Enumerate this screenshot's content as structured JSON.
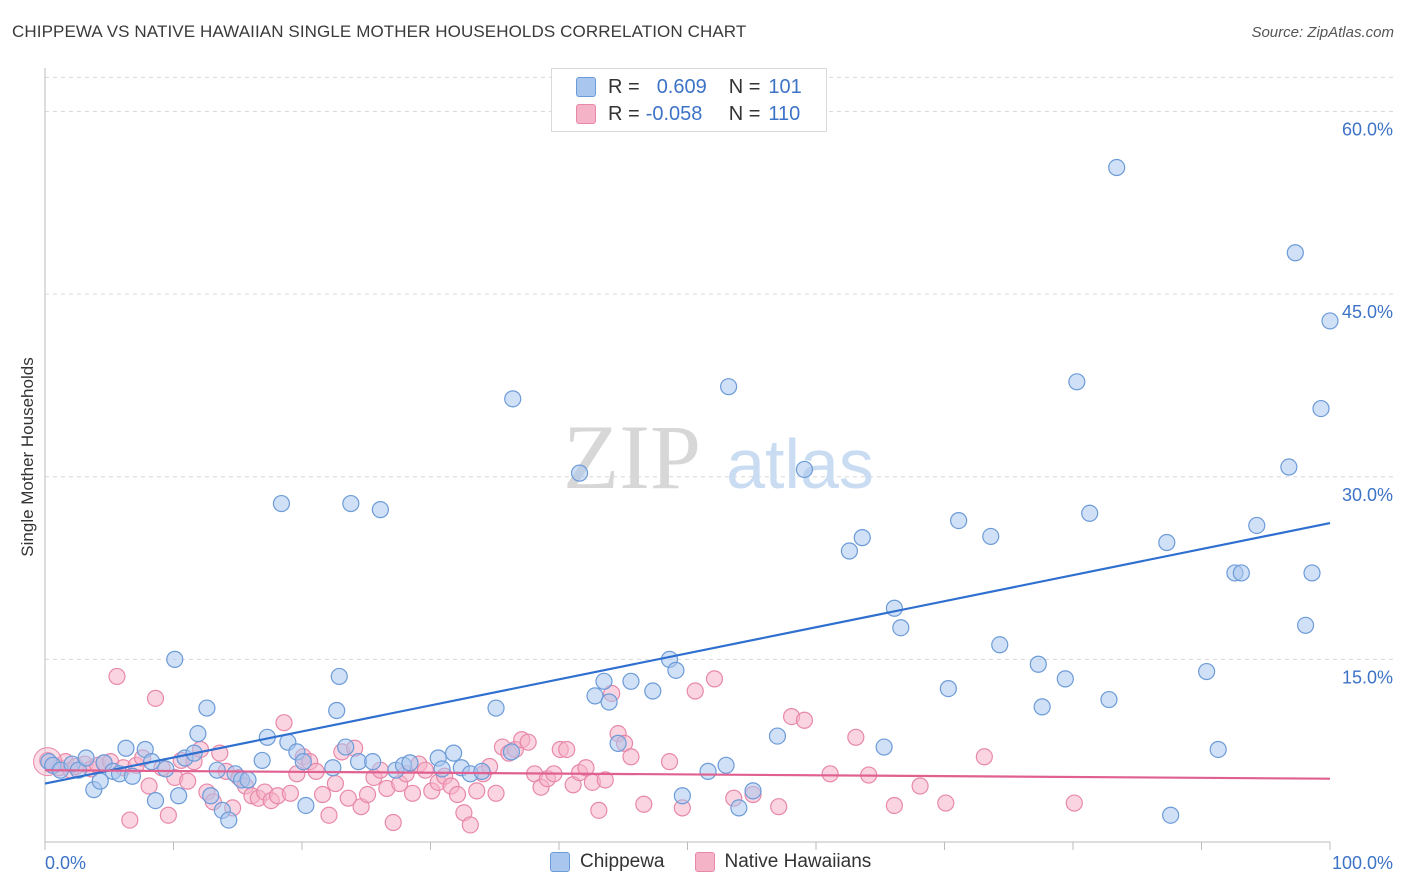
{
  "title": "CHIPPEWA VS NATIVE HAWAIIAN SINGLE MOTHER HOUSEHOLDS CORRELATION CHART",
  "source": "Source: ZipAtlas.com",
  "watermark": {
    "zip": "ZIP",
    "atlas": "atlas"
  },
  "legend_top": {
    "rows": [
      {
        "r_label": "R =",
        "r_value": "0.609",
        "n_label": "N =",
        "n_value": "101"
      },
      {
        "r_label": "R =",
        "r_value": "-0.058",
        "n_label": "N =",
        "n_value": "110"
      }
    ]
  },
  "colors": {
    "blue_fill": "#a9c6ee",
    "blue_stroke": "#6c9bd8",
    "blue_line": "#2e6fcf",
    "pink_fill": "#f5b3c8",
    "pink_stroke": "#e888a8",
    "pink_line": "#e06090",
    "axis_label": "#3d73c7",
    "grid": "#d9d9d9"
  },
  "chart_data": {
    "type": "scatter",
    "title": "CHIPPEWA VS NATIVE HAWAIIAN SINGLE MOTHER HOUSEHOLDS CORRELATION CHART",
    "xlabel": "",
    "ylabel": "Single Mother Households",
    "xlim": [
      0,
      100
    ],
    "ylim": [
      0,
      63
    ],
    "x_tick_labels": [
      "0.0%",
      "100.0%"
    ],
    "y_ticks": [
      15,
      30,
      45,
      60
    ],
    "y_tick_labels": [
      "15.0%",
      "30.0%",
      "45.0%",
      "60.0%"
    ],
    "series": [
      {
        "name": "Chippewa",
        "r": 0.609,
        "n": 101,
        "trend": {
          "x": [
            0,
            100
          ],
          "y": [
            4.8,
            26.2
          ]
        },
        "points": [
          [
            0.3,
            6.6
          ],
          [
            0.6,
            6.3
          ],
          [
            1.2,
            5.9
          ],
          [
            2.1,
            6.4
          ],
          [
            2.6,
            5.9
          ],
          [
            3.2,
            6.9
          ],
          [
            3.8,
            4.3
          ],
          [
            4.3,
            5.0
          ],
          [
            4.6,
            6.5
          ],
          [
            5.3,
            5.8
          ],
          [
            5.8,
            5.6
          ],
          [
            6.3,
            7.7
          ],
          [
            6.8,
            5.4
          ],
          [
            7.8,
            7.6
          ],
          [
            8.3,
            6.6
          ],
          [
            8.6,
            3.4
          ],
          [
            9.4,
            6.0
          ],
          [
            10.1,
            15.0
          ],
          [
            10.4,
            3.8
          ],
          [
            10.9,
            6.9
          ],
          [
            11.6,
            7.3
          ],
          [
            11.9,
            8.9
          ],
          [
            12.6,
            11.0
          ],
          [
            12.9,
            3.8
          ],
          [
            13.4,
            5.9
          ],
          [
            13.8,
            2.6
          ],
          [
            14.3,
            1.8
          ],
          [
            14.8,
            5.6
          ],
          [
            15.3,
            5.1
          ],
          [
            15.8,
            5.1
          ],
          [
            16.9,
            6.7
          ],
          [
            17.3,
            8.6
          ],
          [
            18.4,
            27.8
          ],
          [
            18.9,
            8.2
          ],
          [
            19.6,
            7.4
          ],
          [
            20.1,
            6.6
          ],
          [
            20.3,
            3.0
          ],
          [
            22.4,
            6.1
          ],
          [
            22.7,
            10.8
          ],
          [
            22.9,
            13.6
          ],
          [
            23.4,
            7.8
          ],
          [
            23.8,
            27.8
          ],
          [
            24.4,
            6.6
          ],
          [
            25.5,
            6.6
          ],
          [
            26.1,
            27.3
          ],
          [
            27.3,
            5.9
          ],
          [
            27.9,
            6.3
          ],
          [
            28.4,
            6.5
          ],
          [
            30.6,
            6.9
          ],
          [
            30.9,
            6.0
          ],
          [
            31.8,
            7.3
          ],
          [
            32.4,
            6.1
          ],
          [
            33.1,
            5.6
          ],
          [
            34.0,
            5.8
          ],
          [
            35.1,
            11.0
          ],
          [
            36.3,
            7.4
          ],
          [
            36.4,
            36.4
          ],
          [
            41.6,
            30.3
          ],
          [
            42.8,
            12.0
          ],
          [
            43.5,
            13.2
          ],
          [
            43.9,
            11.5
          ],
          [
            44.6,
            8.1
          ],
          [
            45.6,
            13.2
          ],
          [
            47.3,
            12.4
          ],
          [
            48.6,
            15.0
          ],
          [
            49.1,
            14.1
          ],
          [
            49.6,
            3.8
          ],
          [
            51.6,
            5.8
          ],
          [
            53.0,
            6.3
          ],
          [
            53.2,
            37.4
          ],
          [
            54.0,
            2.8
          ],
          [
            55.1,
            4.2
          ],
          [
            57.0,
            8.7
          ],
          [
            59.1,
            30.6
          ],
          [
            62.6,
            23.9
          ],
          [
            63.6,
            25.0
          ],
          [
            65.3,
            7.8
          ],
          [
            66.1,
            19.2
          ],
          [
            66.6,
            17.6
          ],
          [
            70.3,
            12.6
          ],
          [
            71.1,
            26.4
          ],
          [
            73.6,
            25.1
          ],
          [
            74.3,
            16.2
          ],
          [
            77.3,
            14.6
          ],
          [
            77.6,
            11.1
          ],
          [
            79.4,
            13.4
          ],
          [
            80.3,
            37.8
          ],
          [
            81.3,
            27.0
          ],
          [
            82.8,
            11.7
          ],
          [
            83.4,
            55.4
          ],
          [
            87.3,
            24.6
          ],
          [
            87.6,
            2.2
          ],
          [
            90.4,
            14.0
          ],
          [
            91.3,
            7.6
          ],
          [
            92.6,
            22.1
          ],
          [
            93.1,
            22.1
          ],
          [
            94.3,
            26.0
          ],
          [
            96.8,
            30.8
          ],
          [
            97.3,
            48.4
          ],
          [
            98.1,
            17.8
          ],
          [
            98.6,
            22.1
          ],
          [
            99.3,
            35.6
          ],
          [
            100.0,
            42.8
          ]
        ]
      },
      {
        "name": "Native Hawaiians",
        "r": -0.058,
        "n": 110,
        "trend": {
          "x": [
            0,
            100
          ],
          "y": [
            5.9,
            5.2
          ]
        },
        "points": [
          [
            0.2,
            6.7
          ],
          [
            0.7,
            6.3
          ],
          [
            1.1,
            6.1
          ],
          [
            1.6,
            6.6
          ],
          [
            2.0,
            5.9
          ],
          [
            2.4,
            6.2
          ],
          [
            3.1,
            6.4
          ],
          [
            3.6,
            6.0
          ],
          [
            4.1,
            6.3
          ],
          [
            4.6,
            6.5
          ],
          [
            5.1,
            6.6
          ],
          [
            5.6,
            13.6
          ],
          [
            6.1,
            6.1
          ],
          [
            6.6,
            1.8
          ],
          [
            7.1,
            6.3
          ],
          [
            7.6,
            6.9
          ],
          [
            8.1,
            4.6
          ],
          [
            8.6,
            11.8
          ],
          [
            9.1,
            6.1
          ],
          [
            9.6,
            2.2
          ],
          [
            10.1,
            5.3
          ],
          [
            10.6,
            6.7
          ],
          [
            11.1,
            5.0
          ],
          [
            11.6,
            6.6
          ],
          [
            12.1,
            7.6
          ],
          [
            12.6,
            4.1
          ],
          [
            13.1,
            3.3
          ],
          [
            13.6,
            7.3
          ],
          [
            14.1,
            5.8
          ],
          [
            14.6,
            2.8
          ],
          [
            15.1,
            5.3
          ],
          [
            15.6,
            4.6
          ],
          [
            16.1,
            3.8
          ],
          [
            16.6,
            3.6
          ],
          [
            17.1,
            4.1
          ],
          [
            17.6,
            3.4
          ],
          [
            18.1,
            3.8
          ],
          [
            18.6,
            9.8
          ],
          [
            19.1,
            4.0
          ],
          [
            19.6,
            5.6
          ],
          [
            20.1,
            7.0
          ],
          [
            20.6,
            6.6
          ],
          [
            21.1,
            5.8
          ],
          [
            21.6,
            3.9
          ],
          [
            22.1,
            2.2
          ],
          [
            22.6,
            4.8
          ],
          [
            23.1,
            7.4
          ],
          [
            23.6,
            3.6
          ],
          [
            24.1,
            7.7
          ],
          [
            24.6,
            2.9
          ],
          [
            25.1,
            3.9
          ],
          [
            25.6,
            5.3
          ],
          [
            26.1,
            5.9
          ],
          [
            26.6,
            4.4
          ],
          [
            27.1,
            1.6
          ],
          [
            27.6,
            4.8
          ],
          [
            28.1,
            5.6
          ],
          [
            28.6,
            4.0
          ],
          [
            29.1,
            6.4
          ],
          [
            29.6,
            5.9
          ],
          [
            30.1,
            4.2
          ],
          [
            30.6,
            4.9
          ],
          [
            31.1,
            5.4
          ],
          [
            31.6,
            4.6
          ],
          [
            32.1,
            3.9
          ],
          [
            32.6,
            2.4
          ],
          [
            33.1,
            1.4
          ],
          [
            33.6,
            4.2
          ],
          [
            34.1,
            5.6
          ],
          [
            34.6,
            6.2
          ],
          [
            35.1,
            4.0
          ],
          [
            35.6,
            7.8
          ],
          [
            36.1,
            7.3
          ],
          [
            36.6,
            7.6
          ],
          [
            37.1,
            8.4
          ],
          [
            37.6,
            8.2
          ],
          [
            38.1,
            5.6
          ],
          [
            38.6,
            4.5
          ],
          [
            39.1,
            5.2
          ],
          [
            39.6,
            5.6
          ],
          [
            40.1,
            7.6
          ],
          [
            40.6,
            7.6
          ],
          [
            41.1,
            4.7
          ],
          [
            41.6,
            5.7
          ],
          [
            42.1,
            6.1
          ],
          [
            42.6,
            4.9
          ],
          [
            43.1,
            2.6
          ],
          [
            43.6,
            5.1
          ],
          [
            44.1,
            12.2
          ],
          [
            44.6,
            8.9
          ],
          [
            45.1,
            8.1
          ],
          [
            45.6,
            7.0
          ],
          [
            46.6,
            3.1
          ],
          [
            48.6,
            6.6
          ],
          [
            49.6,
            2.8
          ],
          [
            50.6,
            12.4
          ],
          [
            52.1,
            13.4
          ],
          [
            53.6,
            3.6
          ],
          [
            55.1,
            3.9
          ],
          [
            57.1,
            2.9
          ],
          [
            58.1,
            10.3
          ],
          [
            59.1,
            10.0
          ],
          [
            61.1,
            5.6
          ],
          [
            63.1,
            8.6
          ],
          [
            64.1,
            5.5
          ],
          [
            66.1,
            3.0
          ],
          [
            68.1,
            4.6
          ],
          [
            70.1,
            3.2
          ],
          [
            73.1,
            7.0
          ],
          [
            80.1,
            3.2
          ]
        ]
      }
    ]
  },
  "bottom_legend": [
    {
      "label": "Chippewa"
    },
    {
      "label": "Native Hawaiians"
    }
  ]
}
